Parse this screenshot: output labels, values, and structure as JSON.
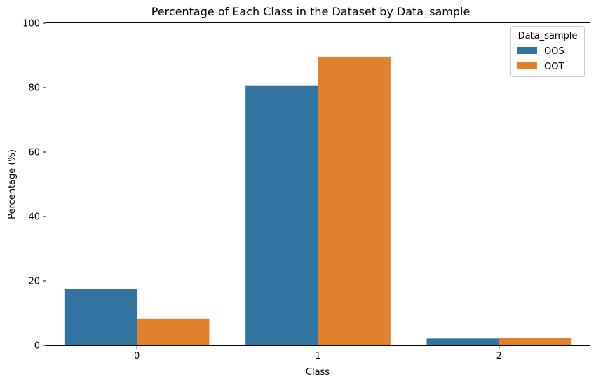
{
  "chart_data": {
    "type": "bar",
    "title": "Percentage of Each Class in the Dataset by Data_sample",
    "xlabel": "Class",
    "ylabel": "Percentage (%)",
    "categories": [
      "0",
      "1",
      "2"
    ],
    "ylim": [
      0,
      100
    ],
    "yticks": [
      "0",
      "20",
      "40",
      "60",
      "80",
      "100"
    ],
    "legend_title": "Data_sample",
    "legend_position": "top-right",
    "grid": false,
    "series": [
      {
        "name": "OOS",
        "color": "#3274a1",
        "values": [
          17.4,
          80.5,
          2.1
        ]
      },
      {
        "name": "OOT",
        "color": "#e1812c",
        "values": [
          8.3,
          89.6,
          2.2
        ]
      }
    ]
  }
}
